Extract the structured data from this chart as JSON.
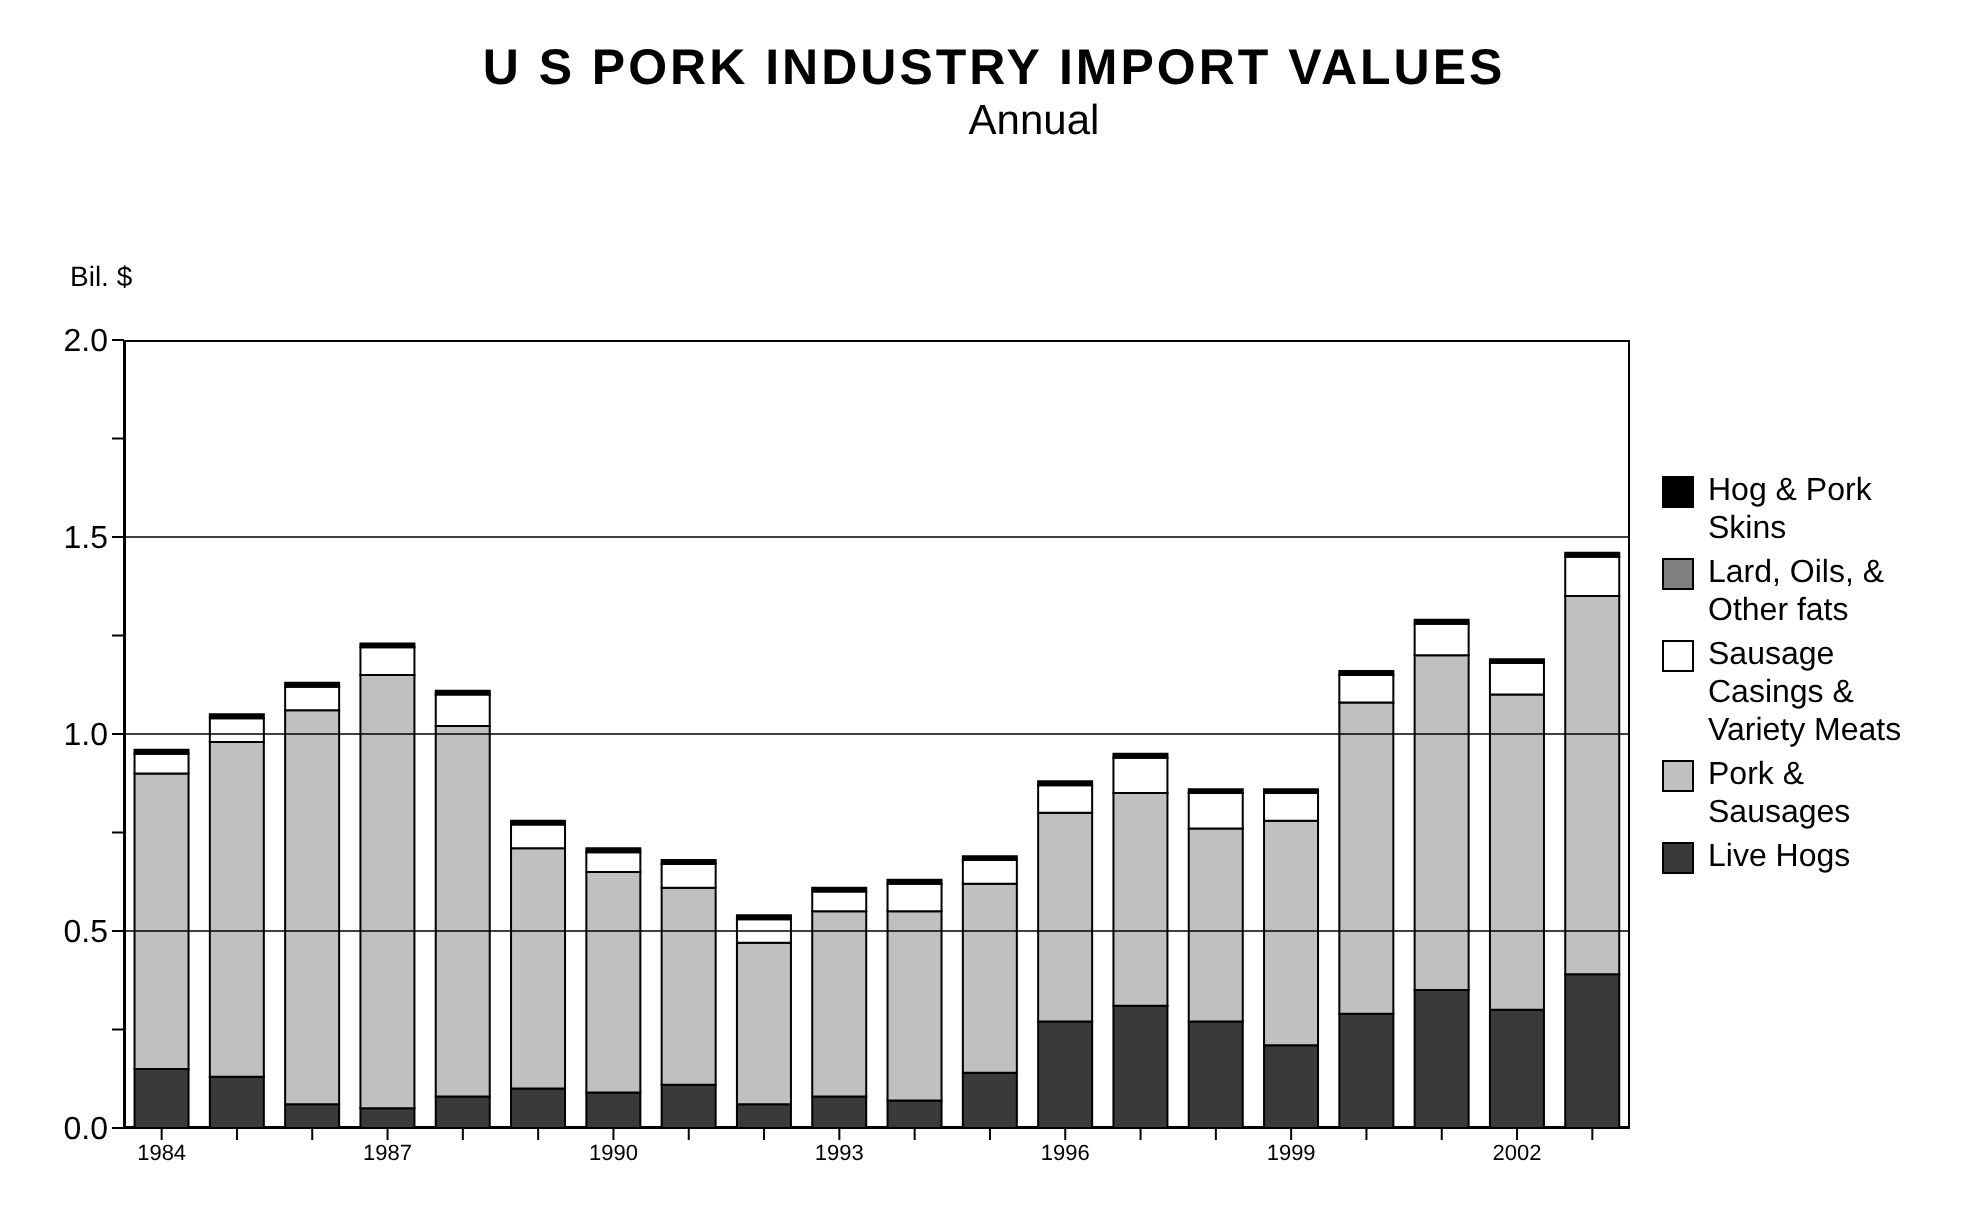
{
  "chart_data": {
    "type": "bar",
    "title": "U S PORK INDUSTRY IMPORT VALUES",
    "subtitle": "Annual",
    "ylabel": "Bil. $",
    "categories": [
      "1984",
      null,
      null,
      "1987",
      null,
      null,
      "1990",
      null,
      null,
      "1993",
      null,
      null,
      "1996",
      null,
      null,
      "1999",
      null,
      null,
      "2002",
      null
    ],
    "stacked": true,
    "series": [
      {
        "name": "Live Hogs",
        "color": "#3a3a3a",
        "values": [
          0.15,
          0.13,
          0.06,
          0.05,
          0.08,
          0.1,
          0.09,
          0.11,
          0.06,
          0.08,
          0.07,
          0.14,
          0.27,
          0.31,
          0.27,
          0.21,
          0.29,
          0.35,
          0.3,
          0.39
        ]
      },
      {
        "name": "Pork & Sausages",
        "color": "#c0c0c0",
        "values": [
          0.75,
          0.85,
          1.0,
          1.1,
          0.94,
          0.61,
          0.56,
          0.5,
          0.41,
          0.47,
          0.48,
          0.48,
          0.53,
          0.54,
          0.49,
          0.57,
          0.79,
          0.85,
          0.8,
          0.96
        ]
      },
      {
        "name": "Sausage Casings & Variety Meats",
        "color": "#ffffff",
        "values": [
          0.05,
          0.06,
          0.06,
          0.07,
          0.08,
          0.06,
          0.05,
          0.06,
          0.06,
          0.05,
          0.07,
          0.06,
          0.07,
          0.09,
          0.09,
          0.07,
          0.07,
          0.08,
          0.08,
          0.1
        ]
      },
      {
        "name": "Lard, Oils, & Other fats",
        "color": "#808080",
        "values": [
          0,
          0,
          0,
          0,
          0,
          0,
          0,
          0,
          0,
          0,
          0,
          0,
          0,
          0,
          0,
          0,
          0,
          0,
          0,
          0
        ]
      },
      {
        "name": "Hog & Pork Skins",
        "color": "#000000",
        "values": [
          0.01,
          0.01,
          0.01,
          0.01,
          0.01,
          0.01,
          0.01,
          0.01,
          0.01,
          0.01,
          0.01,
          0.01,
          0.01,
          0.01,
          0.01,
          0.01,
          0.01,
          0.01,
          0.01,
          0.01
        ]
      }
    ],
    "ylim": [
      0,
      2
    ],
    "yticks": [
      {
        "value": 0,
        "label": "0.0"
      },
      {
        "value": 0.25,
        "label": null
      },
      0.5,
      {
        "value": 0.75,
        "label": null
      },
      {
        "value": 1,
        "label": "1.0"
      },
      {
        "value": 1.25,
        "label": null
      },
      1.5,
      {
        "value": 1.75,
        "label": null
      },
      {
        "value": 2,
        "label": "2.0"
      }
    ],
    "grid": "y",
    "legend": "right"
  }
}
